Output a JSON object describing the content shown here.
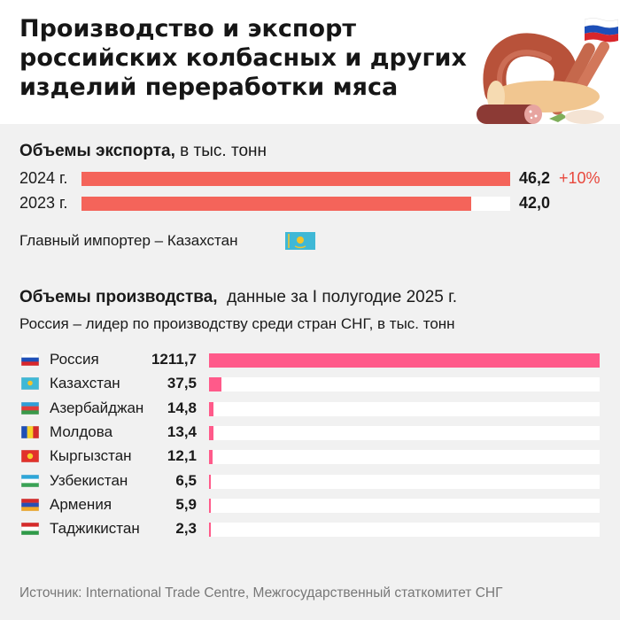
{
  "title": "Производство и экспорт российских колбасных и других изделий переработки мяса",
  "export_section": {
    "heading_bold": "Объемы экспорта,",
    "heading_rest": " в тыс. тонн",
    "importer_text": "Главный импортер – Казахстан"
  },
  "production_section": {
    "heading_bold": "Объемы производства,",
    "heading_rest": "  данные за I полугодие 2025 г.",
    "subheading": "Россия – лидер по производству среди стран СНГ, в тыс. тонн"
  },
  "source": "Источник: International Trade Centre, Межгосударственный статкомитет СНГ",
  "colors": {
    "export_bar": "#f4645a",
    "production_bar": "#ff5a8a",
    "delta": "#e8473c",
    "background": "#f1f1f1"
  },
  "chart_data": [
    {
      "type": "bar",
      "orientation": "horizontal",
      "categories": [
        "2024 г.",
        "2023 г."
      ],
      "values": [
        46.2,
        42.0
      ],
      "value_labels": [
        "46,2",
        "42,0"
      ],
      "annotations": [
        "+10%",
        ""
      ],
      "xlim": [
        0,
        46.2
      ]
    },
    {
      "type": "bar",
      "orientation": "horizontal",
      "categories": [
        "Россия",
        "Казахстан",
        "Азербайджан",
        "Молдова",
        "Кыргызстан",
        "Узбекистан",
        "Армения",
        "Таджикистан"
      ],
      "values": [
        1211.7,
        37.5,
        14.8,
        13.4,
        12.1,
        6.5,
        5.9,
        2.3
      ],
      "value_labels": [
        "1211,7",
        "37,5",
        "14,8",
        "13,4",
        "12,1",
        "6,5",
        "5,9",
        "2,3"
      ],
      "flag_icons": [
        "russia-flag-icon",
        "kazakhstan-flag-icon",
        "azerbaijan-flag-icon",
        "moldova-flag-icon",
        "kyrgyzstan-flag-icon",
        "uzbekistan-flag-icon",
        "armenia-flag-icon",
        "tajikistan-flag-icon"
      ],
      "xlim": [
        0,
        1211.7
      ]
    }
  ]
}
